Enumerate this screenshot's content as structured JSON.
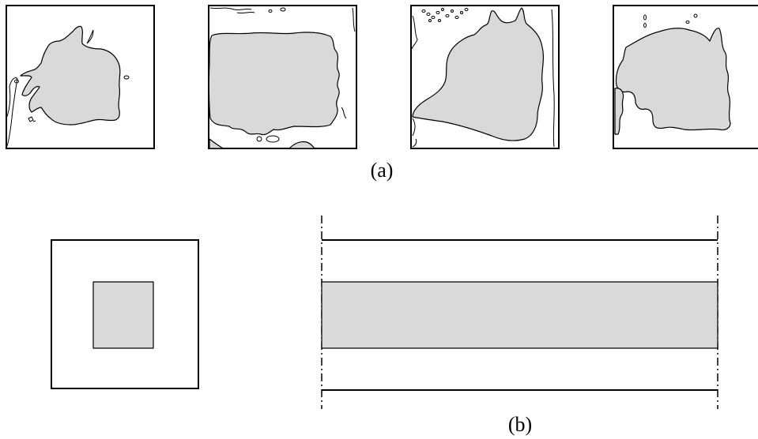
{
  "captions": {
    "top": "(a)",
    "bottom": "(b)"
  },
  "colors": {
    "shaded": "#d9d9d9",
    "line": "#000000",
    "background": "#ffffff"
  }
}
